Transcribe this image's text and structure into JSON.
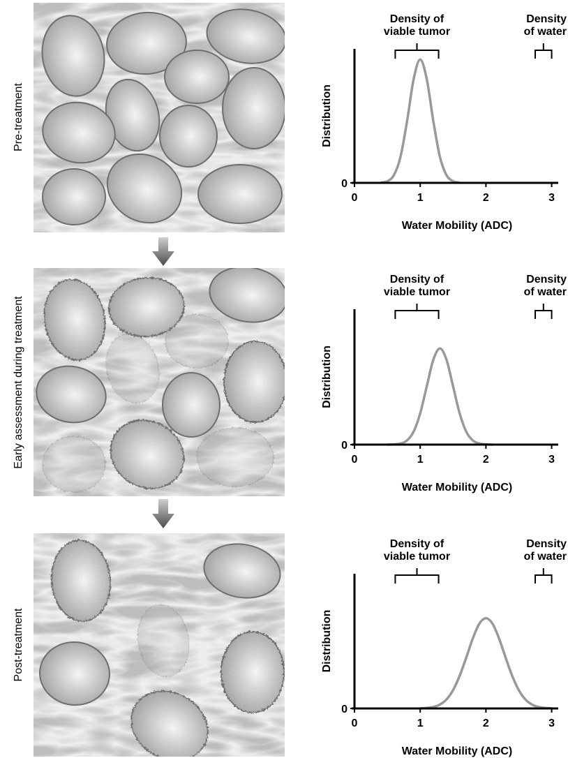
{
  "row_labels": [
    "Pre-treatment",
    "Early assessment during treatment",
    "Post-treatment"
  ],
  "chart_data": [
    {
      "type": "line",
      "x_label": "Water Mobility (ADC)",
      "y_label": "Distribution",
      "xlim": [
        0,
        3.1
      ],
      "xticks": [
        0,
        1,
        2,
        3
      ],
      "ylim": [
        0,
        1
      ],
      "yticks": [
        0
      ],
      "color": "#999999",
      "x": [
        0.4,
        0.5,
        0.6,
        0.7,
        0.8,
        0.9,
        1.0,
        1.1,
        1.2,
        1.3,
        1.4,
        1.5,
        1.6
      ],
      "values": [
        0.002,
        0.012,
        0.058,
        0.194,
        0.46,
        0.774,
        0.92,
        0.774,
        0.46,
        0.194,
        0.058,
        0.012,
        0.002
      ],
      "annotations": [
        {
          "lines": [
            "Density of",
            "viable tumor"
          ],
          "xrange": [
            0.62,
            1.28
          ]
        },
        {
          "lines": [
            "Density",
            "of water"
          ],
          "xrange": [
            2.75,
            3.0
          ]
        }
      ]
    },
    {
      "type": "line",
      "x_label": "Water Mobility (ADC)",
      "y_label": "Distribution",
      "xlim": [
        0,
        3.1
      ],
      "xticks": [
        0,
        1,
        2,
        3
      ],
      "ylim": [
        0,
        1
      ],
      "yticks": [
        0
      ],
      "color": "#999999",
      "x": [
        0.5,
        0.6,
        0.7,
        0.8,
        0.9,
        1.0,
        1.1,
        1.2,
        1.3,
        1.4,
        1.5,
        1.6,
        1.7,
        1.8,
        1.9,
        2.0,
        2.1
      ],
      "values": [
        0,
        0.002,
        0.008,
        0.031,
        0.096,
        0.231,
        0.431,
        0.627,
        0.71,
        0.627,
        0.431,
        0.231,
        0.096,
        0.031,
        0.008,
        0.002,
        0
      ],
      "annotations": [
        {
          "lines": [
            "Density of",
            "viable tumor"
          ],
          "xrange": [
            0.62,
            1.28
          ]
        },
        {
          "lines": [
            "Density",
            "of water"
          ],
          "xrange": [
            2.75,
            3.0
          ]
        }
      ]
    },
    {
      "type": "line",
      "x_label": "Water Mobility (ADC)",
      "y_label": "Distribution",
      "xlim": [
        0,
        3.1
      ],
      "xticks": [
        0,
        1,
        2,
        3
      ],
      "ylim": [
        0,
        1
      ],
      "yticks": [
        0
      ],
      "color": "#999999",
      "x": [
        1.0,
        1.1,
        1.2,
        1.3,
        1.4,
        1.5,
        1.6,
        1.7,
        1.8,
        1.9,
        2.0,
        2.1,
        2.2,
        2.3,
        2.4,
        2.5,
        2.6,
        2.7,
        2.8,
        2.9,
        3.0
      ],
      "values": [
        0.001,
        0.004,
        0.011,
        0.029,
        0.067,
        0.136,
        0.242,
        0.377,
        0.519,
        0.629,
        0.67,
        0.629,
        0.519,
        0.377,
        0.242,
        0.136,
        0.067,
        0.029,
        0.011,
        0.004,
        0.001
      ],
      "annotations": [
        {
          "lines": [
            "Density of",
            "viable tumor"
          ],
          "xrange": [
            0.62,
            1.28
          ]
        },
        {
          "lines": [
            "Density",
            "of water"
          ],
          "xrange": [
            2.75,
            3.0
          ]
        }
      ]
    }
  ]
}
